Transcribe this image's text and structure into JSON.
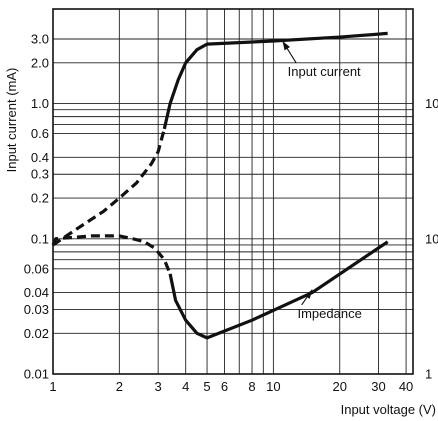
{
  "chart_data": {
    "type": "line",
    "title": "",
    "xlabel": "Input voltage (V)",
    "ylabel": "Input current (mA)",
    "xscale": "log",
    "yscale": "log",
    "xlim": [
      1,
      43
    ],
    "ylim": [
      0.01,
      5.0
    ],
    "grid": true,
    "x_ticks": [
      {
        "v": 1,
        "label": "1"
      },
      {
        "v": 2,
        "label": "2"
      },
      {
        "v": 3,
        "label": "3"
      },
      {
        "v": 4,
        "label": "4"
      },
      {
        "v": 5,
        "label": "5"
      },
      {
        "v": 6,
        "label": "6"
      },
      {
        "v": 8,
        "label": "8"
      },
      {
        "v": 10,
        "label": "10"
      },
      {
        "v": 20,
        "label": "20"
      },
      {
        "v": 30,
        "label": "30"
      },
      {
        "v": 40,
        "label": "40"
      }
    ],
    "x_extra_grid": [
      7,
      9
    ],
    "y_ticks": [
      {
        "v": 3.0,
        "label": "3.0"
      },
      {
        "v": 2.0,
        "label": "2.0"
      },
      {
        "v": 1.0,
        "label": "1.0"
      },
      {
        "v": 0.6,
        "label": "0.6"
      },
      {
        "v": 0.4,
        "label": "0.4"
      },
      {
        "v": 0.3,
        "label": "0.3"
      },
      {
        "v": 0.2,
        "label": "0.2"
      },
      {
        "v": 0.1,
        "label": "0.1"
      },
      {
        "v": 0.06,
        "label": "0.06"
      },
      {
        "v": 0.04,
        "label": "0.04"
      },
      {
        "v": 0.03,
        "label": "0.03"
      },
      {
        "v": 0.02,
        "label": "0.02"
      },
      {
        "v": 0.01,
        "label": "0.01"
      }
    ],
    "y_extra_grid": [
      0.9,
      0.8,
      0.7,
      0.09,
      0.08,
      0.07
    ],
    "right_ticks": [
      {
        "v": 1.0,
        "label": "100"
      },
      {
        "v": 0.1,
        "label": "10"
      },
      {
        "v": 0.01,
        "label": "1"
      }
    ],
    "series": [
      {
        "name": "Input current",
        "segments": [
          {
            "style": "dashed",
            "points": [
              [
                1.0,
                0.09
              ],
              [
                1.3,
                0.12
              ],
              [
                1.7,
                0.16
              ],
              [
                2.0,
                0.2
              ],
              [
                2.4,
                0.26
              ],
              [
                2.8,
                0.36
              ],
              [
                3.0,
                0.44
              ],
              [
                3.2,
                0.65
              ]
            ]
          },
          {
            "style": "solid",
            "points": [
              [
                3.2,
                0.65
              ],
              [
                3.4,
                1.0
              ],
              [
                3.7,
                1.5
              ],
              [
                4.0,
                2.0
              ],
              [
                4.5,
                2.5
              ],
              [
                5.0,
                2.75
              ],
              [
                10,
                2.9
              ],
              [
                20,
                3.1
              ],
              [
                33,
                3.3
              ]
            ]
          }
        ]
      },
      {
        "name": "Impedance",
        "segments": [
          {
            "style": "dashed",
            "points": [
              [
                1.0,
                0.09
              ],
              [
                1.03,
                0.1
              ],
              [
                1.5,
                0.105
              ],
              [
                2.0,
                0.105
              ],
              [
                2.3,
                0.1
              ],
              [
                2.6,
                0.095
              ],
              [
                2.9,
                0.085
              ],
              [
                3.2,
                0.07
              ],
              [
                3.4,
                0.055
              ]
            ]
          },
          {
            "style": "solid",
            "points": [
              [
                3.4,
                0.055
              ],
              [
                3.6,
                0.035
              ],
              [
                4.0,
                0.025
              ],
              [
                4.5,
                0.02
              ],
              [
                5.0,
                0.0185
              ],
              [
                8,
                0.025
              ],
              [
                15,
                0.04
              ],
              [
                33,
                0.095
              ]
            ]
          }
        ]
      }
    ],
    "annotations": [
      {
        "text": "Input current",
        "at": [
          17.0,
          1.6
        ],
        "arrow_to": [
          11.0,
          2.9
        ]
      },
      {
        "text": "Impedance",
        "at": [
          18.0,
          0.026
        ],
        "arrow_to": [
          15.0,
          0.042
        ]
      }
    ]
  }
}
